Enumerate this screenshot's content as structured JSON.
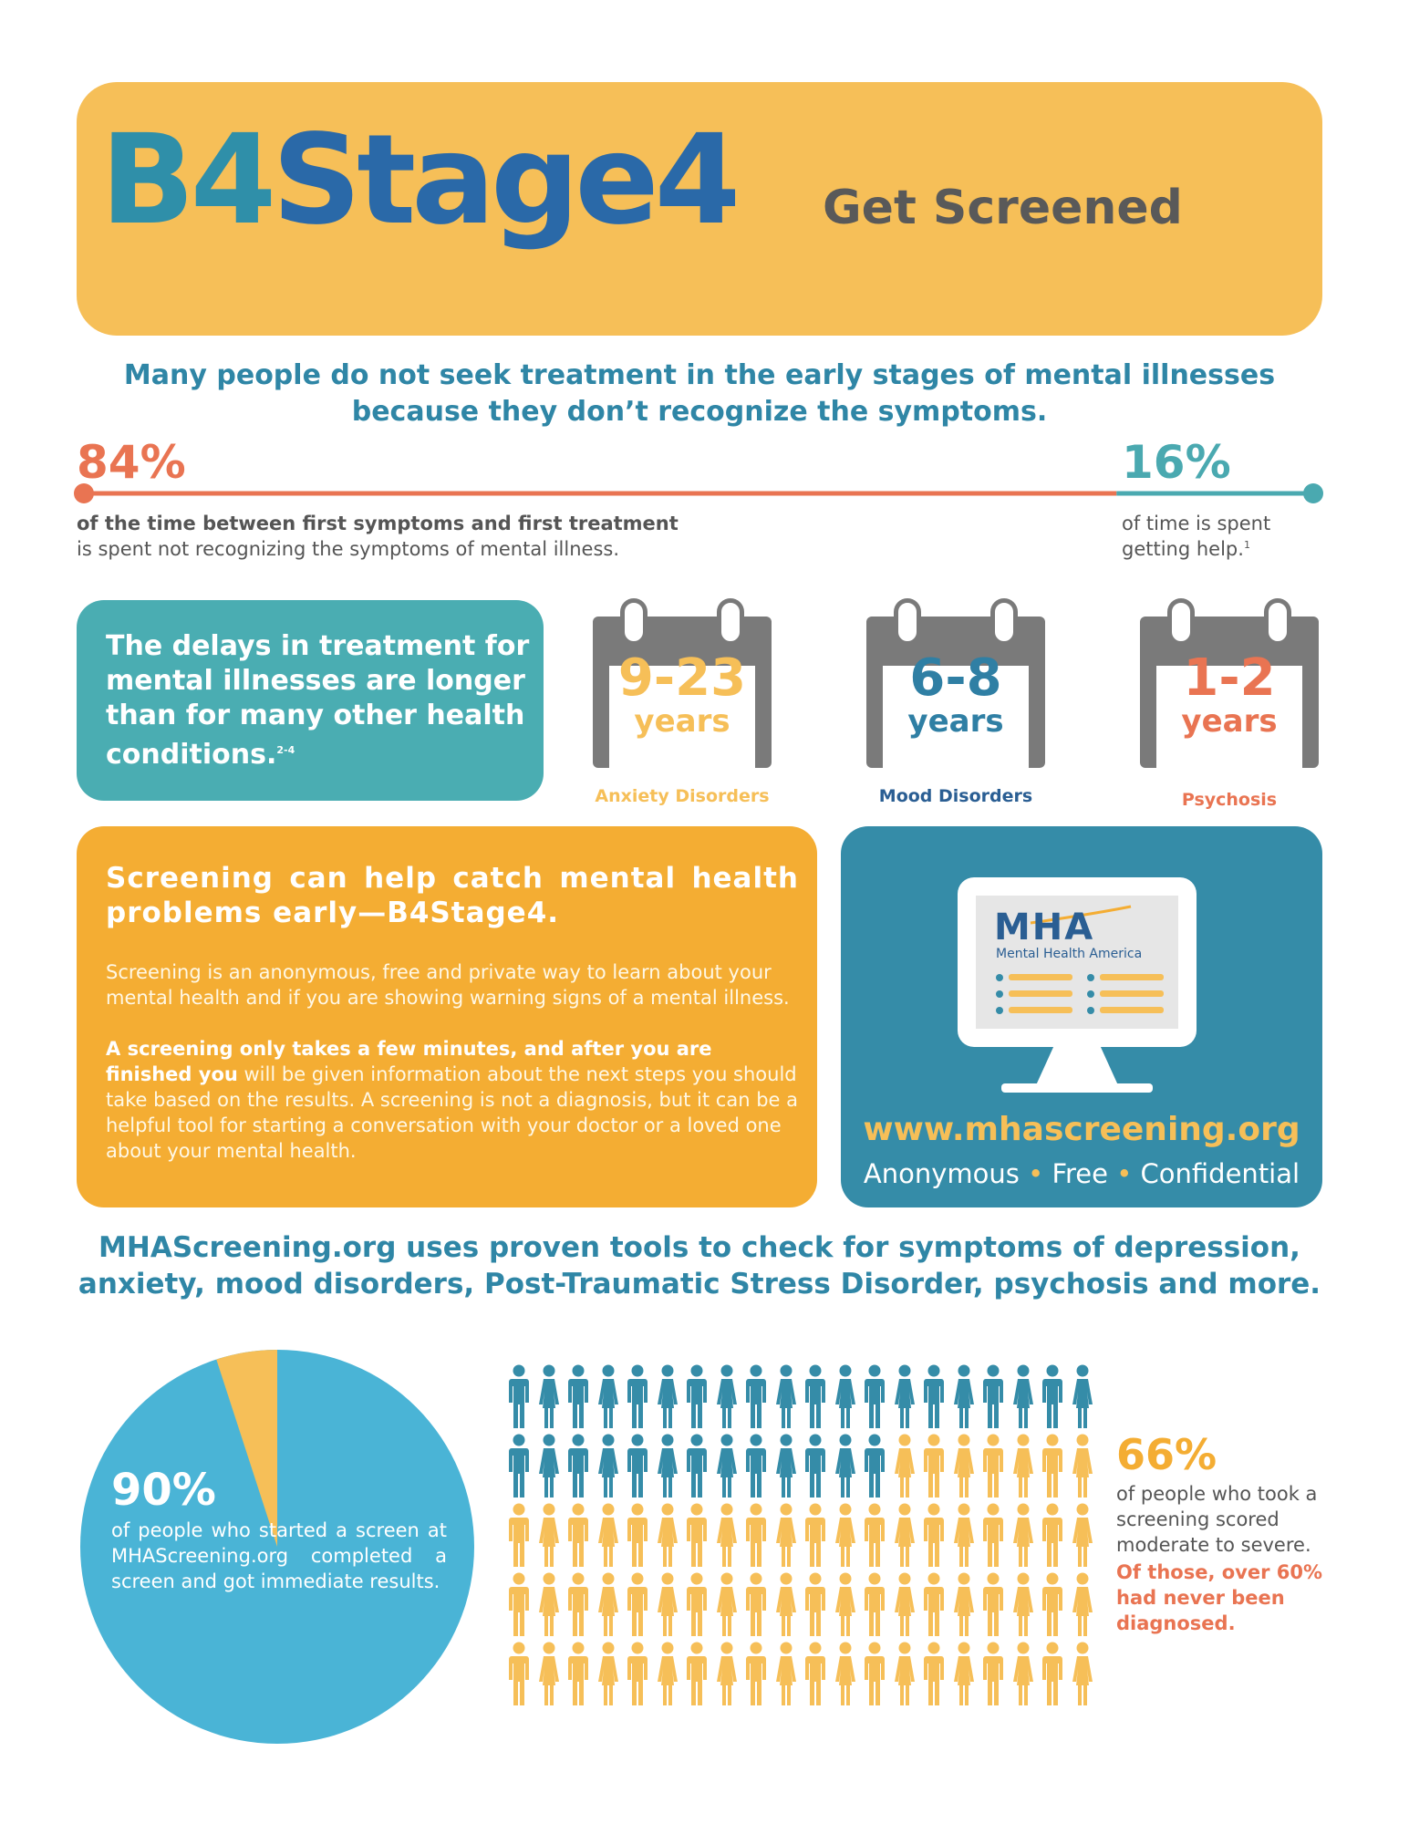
{
  "header": {
    "title_part1": "B4",
    "title_part2": "Stage4",
    "subtitle": "Get Screened"
  },
  "intro": {
    "line1": "Many people do not seek treatment in the early stages of mental illnesses",
    "line2": "because they don’t recognize the symptoms."
  },
  "timeline": {
    "left_pct": "84%",
    "left_line1": "of the time between first symptoms and first treatment",
    "left_line2": "is spent not recognizing the symptoms of mental illness.",
    "right_pct": "16%",
    "right_line1": "of time is spent",
    "right_line2": "getting help.",
    "right_sup": "1",
    "split_fraction": 0.84
  },
  "delays": {
    "text": "The delays in treatment for mental illnesses are longer than for many other health conditions.",
    "sup": "2-4"
  },
  "calendars": [
    {
      "number": "9-23",
      "unit": "years",
      "label": "Anxiety  Disorders",
      "color": "#f6bf58",
      "label_color": "#f6bf58"
    },
    {
      "number": "6-8",
      "unit": "years",
      "label": "Mood Disorders",
      "color": "#2f7fa4",
      "label_color": "#2a5e93"
    },
    {
      "number": "1-2",
      "unit": "years",
      "label": "Psychosis",
      "color": "#e97452",
      "label_color": "#e97452"
    }
  ],
  "screening": {
    "heading": "Screening can help catch mental health problems early—B4Stage4.",
    "para1": "Screening is an anonymous, free and private way to learn about your mental health and if you are showing warning signs of a mental illness.",
    "para2_bold": "A screening only takes a few minutes, and after you are finished you",
    "para2_rest": " will be given information about the next steps you should take based on the results.  A screening is not a diagnosis, but it can be a helpful tool for starting a conversation with your doctor or a loved one about your mental health."
  },
  "mha": {
    "logo": "MHA",
    "logo_sub": "Mental Health America",
    "url": "www.mhascreening.org",
    "tag1": "Anonymous",
    "tag2": "Free",
    "tag3": "Confidential",
    "sep": "•"
  },
  "tools": {
    "line1": "MHAScreening.org uses proven tools to check for symptoms of depression,",
    "line2": "anxiety, mood disorders, Post-Traumatic Stress Disorder, psychosis and more."
  },
  "pie": {
    "pct": "90%",
    "text": "of people who started a screen at MHAScreening.org completed a screen and got immediate results.",
    "completed_fraction": 0.9,
    "main_color": "#4ab4d6",
    "slice_color": "#f6bf58"
  },
  "people": {
    "rows": 5,
    "cols": 20,
    "highlighted": 33,
    "highlight_color": "#358ca8",
    "rest_color": "#f6bf58"
  },
  "stat66": {
    "pct": "66%",
    "text": "of people who took a screening scored moderate to severe.",
    "emphasis": "Of those, over 60% had never been diagnosed."
  }
}
